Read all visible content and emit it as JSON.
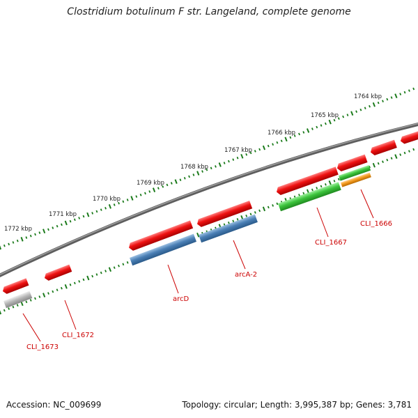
{
  "title": "Clostridium botulinum F str. Langeland, complete genome",
  "footer": {
    "accession": "Accession: NC_009699",
    "summary": "Topology: circular; Length: 3,995,387 bp; Genes: 3,781"
  },
  "scale_labels": [
    "1764 kbp",
    "1765 kbp",
    "1766 kbp",
    "1767 kbp",
    "1768 kbp",
    "1769 kbp",
    "1770 kbp",
    "1771 kbp",
    "1772 kbp"
  ],
  "gene_labels": [
    "CLI_1666",
    "CLI_1667",
    "arcA-2",
    "arcD",
    "CLI_1672",
    "CLI_1673"
  ],
  "colors": {
    "backbone": "#7a7a7a",
    "ticks": "#1a7a1a",
    "red_gene": "#ee1111",
    "blue_gene": "#4a7fb5",
    "green_gene": "#3cc43c",
    "orange_gene": "#f39a1f",
    "gray_gene": "#b8b8b8",
    "label": "#cc0000"
  }
}
